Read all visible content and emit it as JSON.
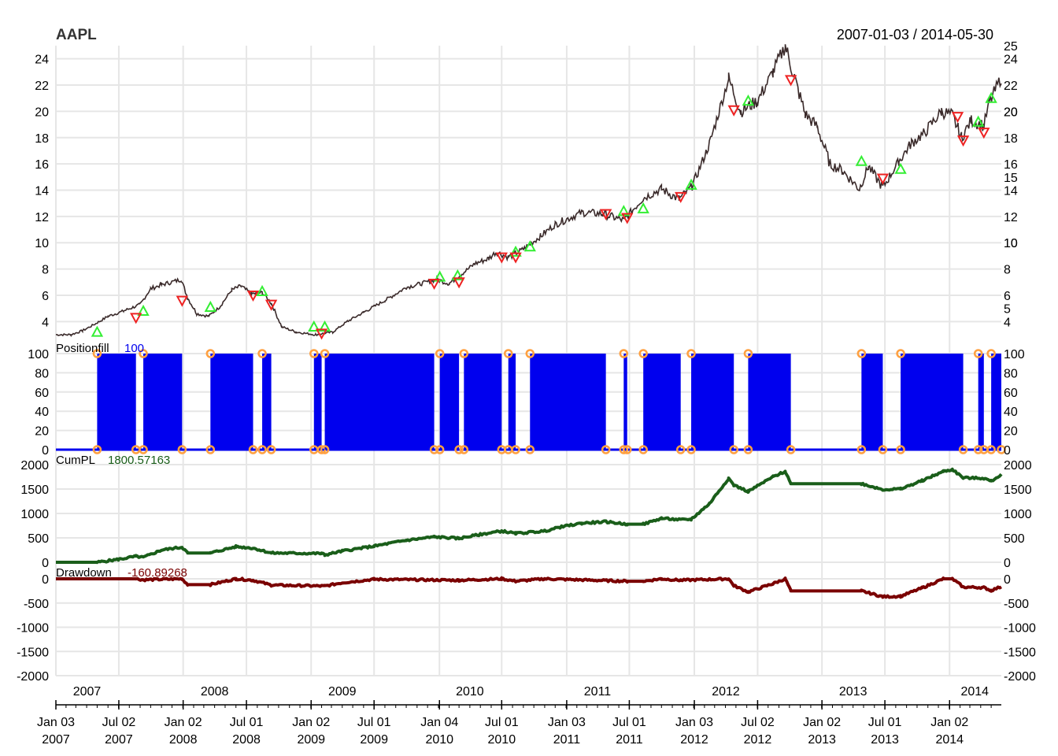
{
  "chart_data": {
    "type": "line",
    "title": "AAPL",
    "date_range": "2007-01-03 / 2014-05-30",
    "x_range": [
      "2007-01-03",
      "2014-05-30"
    ],
    "colors": {
      "price": "#3a2a2a",
      "buy": "#33ee33",
      "sell": "#ee2222",
      "position": "#0000ee",
      "fill_marker": "#ffa040",
      "cumpl": "#1a5e1a",
      "drawdown": "#7a0000",
      "grid": "#e6e6e6"
    },
    "x_ticks_major": [
      {
        "date": "2007-01-03",
        "line1": "Jan 03",
        "line2": "2007"
      },
      {
        "date": "2007-07-02",
        "line1": "Jul 02",
        "line2": "2007"
      },
      {
        "date": "2008-01-02",
        "line1": "Jan 02",
        "line2": "2008"
      },
      {
        "date": "2008-07-01",
        "line1": "Jul 01",
        "line2": "2008"
      },
      {
        "date": "2009-01-02",
        "line1": "Jan 02",
        "line2": "2009"
      },
      {
        "date": "2009-07-01",
        "line1": "Jul 01",
        "line2": "2009"
      },
      {
        "date": "2010-01-04",
        "line1": "Jan 04",
        "line2": "2010"
      },
      {
        "date": "2010-07-01",
        "line1": "Jul 01",
        "line2": "2010"
      },
      {
        "date": "2011-01-03",
        "line1": "Jan 03",
        "line2": "2011"
      },
      {
        "date": "2011-07-01",
        "line1": "Jul 01",
        "line2": "2011"
      },
      {
        "date": "2012-01-03",
        "line1": "Jan 03",
        "line2": "2012"
      },
      {
        "date": "2012-07-02",
        "line1": "Jul 02",
        "line2": "2012"
      },
      {
        "date": "2013-01-02",
        "line1": "Jan 02",
        "line2": "2013"
      },
      {
        "date": "2013-07-01",
        "line1": "Jul 01",
        "line2": "2013"
      },
      {
        "date": "2014-01-02",
        "line1": "Jan 02",
        "line2": "2014"
      }
    ],
    "x_year_labels": [
      {
        "date": "2007-04-02",
        "label": "2007"
      },
      {
        "date": "2008-04-01",
        "label": "2008"
      },
      {
        "date": "2009-04-01",
        "label": "2009"
      },
      {
        "date": "2010-04-01",
        "label": "2010"
      },
      {
        "date": "2011-04-01",
        "label": "2011"
      },
      {
        "date": "2012-04-02",
        "label": "2012"
      },
      {
        "date": "2013-04-01",
        "label": "2013"
      },
      {
        "date": "2014-03-15",
        "label": "2014"
      }
    ],
    "panels": [
      {
        "id": "price",
        "label": "",
        "value_label": "",
        "ylim": [
          3,
          25
        ],
        "y_ticks_left": [
          "4",
          "6",
          "8",
          "10",
          "12",
          "14",
          "16",
          "18",
          "20",
          "22",
          "24"
        ],
        "y_ticks_right": [
          "4",
          "5",
          "6",
          "8",
          "10",
          "10",
          "12",
          "14",
          "15",
          "16",
          "18",
          "20",
          "20",
          "22",
          "24",
          "25"
        ],
        "series_points": [
          [
            "2007-01-03",
            3.0
          ],
          [
            "2007-02-15",
            3.0
          ],
          [
            "2007-03-20",
            3.3
          ],
          [
            "2007-05-01",
            3.9
          ],
          [
            "2007-06-01",
            4.4
          ],
          [
            "2007-07-15",
            4.8
          ],
          [
            "2007-09-01",
            5.3
          ],
          [
            "2007-10-01",
            6.5
          ],
          [
            "2007-11-01",
            6.8
          ],
          [
            "2007-12-27",
            7.2
          ],
          [
            "2008-01-15",
            5.8
          ],
          [
            "2008-02-10",
            4.6
          ],
          [
            "2008-03-15",
            4.4
          ],
          [
            "2008-04-15",
            5.1
          ],
          [
            "2008-05-20",
            6.4
          ],
          [
            "2008-06-15",
            6.7
          ],
          [
            "2008-07-15",
            6.1
          ],
          [
            "2008-08-15",
            6.2
          ],
          [
            "2008-09-10",
            5.4
          ],
          [
            "2008-10-10",
            3.6
          ],
          [
            "2008-11-20",
            3.2
          ],
          [
            "2009-01-15",
            3.0
          ],
          [
            "2009-03-05",
            3.2
          ],
          [
            "2009-04-15",
            4.0
          ],
          [
            "2009-06-01",
            4.7
          ],
          [
            "2009-08-01",
            5.6
          ],
          [
            "2009-10-01",
            6.6
          ],
          [
            "2009-12-28",
            7.2
          ],
          [
            "2010-02-01",
            6.9
          ],
          [
            "2010-04-15",
            8.4
          ],
          [
            "2010-05-25",
            8.8
          ],
          [
            "2010-06-15",
            9.3
          ],
          [
            "2010-07-20",
            8.9
          ],
          [
            "2010-09-01",
            9.5
          ],
          [
            "2010-10-20",
            10.5
          ],
          [
            "2010-12-01",
            11.4
          ],
          [
            "2011-02-15",
            12.3
          ],
          [
            "2011-04-15",
            12.2
          ],
          [
            "2011-06-15",
            11.7
          ],
          [
            "2011-08-10",
            13.4
          ],
          [
            "2011-10-01",
            14.1
          ],
          [
            "2011-11-20",
            13.3
          ],
          [
            "2011-12-28",
            14.3
          ],
          [
            "2012-02-15",
            17.5
          ],
          [
            "2012-04-10",
            22.5
          ],
          [
            "2012-05-15",
            20.0
          ],
          [
            "2012-07-02",
            20.8
          ],
          [
            "2012-08-15",
            23.0
          ],
          [
            "2012-09-19",
            25.0
          ],
          [
            "2012-10-15",
            22.6
          ],
          [
            "2012-11-15",
            19.8
          ],
          [
            "2012-12-20",
            18.8
          ],
          [
            "2013-01-25",
            16.0
          ],
          [
            "2013-03-01",
            15.5
          ],
          [
            "2013-04-19",
            14.1
          ],
          [
            "2013-05-15",
            15.8
          ],
          [
            "2013-06-25",
            14.2
          ],
          [
            "2013-08-10",
            16.2
          ],
          [
            "2013-09-15",
            17.6
          ],
          [
            "2013-10-20",
            18.3
          ],
          [
            "2013-12-10",
            20.0
          ],
          [
            "2014-01-10",
            19.7
          ],
          [
            "2014-02-05",
            18.0
          ],
          [
            "2014-03-05",
            19.3
          ],
          [
            "2014-04-10",
            18.9
          ],
          [
            "2014-04-25",
            20.6
          ],
          [
            "2014-05-30",
            22.6
          ]
        ],
        "buy_signals": [
          [
            "2007-05-01",
            3.2
          ],
          [
            "2007-09-10",
            4.8
          ],
          [
            "2008-03-20",
            5.1
          ],
          [
            "2008-08-15",
            6.3
          ],
          [
            "2009-01-10",
            3.6
          ],
          [
            "2009-02-10",
            3.6
          ],
          [
            "2010-01-05",
            7.4
          ],
          [
            "2010-02-25",
            7.5
          ],
          [
            "2010-08-10",
            9.3
          ],
          [
            "2010-09-20",
            9.7
          ],
          [
            "2011-06-15",
            12.4
          ],
          [
            "2011-08-10",
            12.6
          ],
          [
            "2011-12-25",
            14.4
          ],
          [
            "2012-06-05",
            20.8
          ],
          [
            "2013-04-25",
            16.2
          ],
          [
            "2013-08-15",
            15.6
          ],
          [
            "2014-03-25",
            19.2
          ],
          [
            "2014-05-01",
            21.0
          ]
        ],
        "sell_signals": [
          [
            "2007-08-20",
            4.3
          ],
          [
            "2007-12-30",
            5.6
          ],
          [
            "2008-07-20",
            6.0
          ],
          [
            "2008-09-10",
            5.3
          ],
          [
            "2009-02-01",
            3.1
          ],
          [
            "2009-12-20",
            6.9
          ],
          [
            "2010-03-01",
            7.0
          ],
          [
            "2010-07-01",
            8.9
          ],
          [
            "2010-08-10",
            8.9
          ],
          [
            "2011-04-25",
            12.2
          ],
          [
            "2011-06-25",
            11.9
          ],
          [
            "2011-11-25",
            13.5
          ],
          [
            "2012-04-25",
            20.1
          ],
          [
            "2012-10-05",
            22.4
          ],
          [
            "2013-06-25",
            14.9
          ],
          [
            "2014-01-25",
            19.6
          ],
          [
            "2014-02-10",
            17.8
          ],
          [
            "2014-04-10",
            18.4
          ]
        ]
      },
      {
        "id": "position",
        "label": "Positionfill",
        "value_label": "100",
        "ylim": [
          0,
          100
        ],
        "y_ticks_left": [
          "0",
          "20",
          "40",
          "60",
          "80",
          "100"
        ],
        "y_ticks_right": [
          "0",
          "20",
          "40",
          "60",
          "80",
          "100"
        ],
        "long_intervals": [
          [
            "2007-05-01",
            "2007-08-20"
          ],
          [
            "2007-09-10",
            "2007-12-30"
          ],
          [
            "2008-03-20",
            "2008-07-20"
          ],
          [
            "2008-08-15",
            "2008-09-10"
          ],
          [
            "2009-01-10",
            "2009-02-01"
          ],
          [
            "2009-02-10",
            "2009-12-20"
          ],
          [
            "2010-01-05",
            "2010-03-01"
          ],
          [
            "2010-03-15",
            "2010-07-01"
          ],
          [
            "2010-07-20",
            "2010-08-10"
          ],
          [
            "2010-09-20",
            "2011-04-25"
          ],
          [
            "2011-06-15",
            "2011-06-25"
          ],
          [
            "2011-08-10",
            "2011-11-25"
          ],
          [
            "2011-12-25",
            "2012-04-25"
          ],
          [
            "2012-06-05",
            "2012-10-05"
          ],
          [
            "2013-04-25",
            "2013-06-25"
          ],
          [
            "2013-08-15",
            "2014-02-10"
          ],
          [
            "2014-03-25",
            "2014-04-10"
          ],
          [
            "2014-05-01",
            "2014-05-30"
          ]
        ]
      },
      {
        "id": "cumpl",
        "label": "CumPL",
        "value_label": "1800.57163",
        "ylim": [
          0,
          2000
        ],
        "y_ticks_left": [
          "0",
          "500",
          "1000",
          "1500",
          "2000"
        ],
        "y_ticks_right": [
          "0",
          "500",
          "1000",
          "1500",
          "2000"
        ],
        "series_points": [
          [
            "2007-01-03",
            0
          ],
          [
            "2007-05-01",
            0
          ],
          [
            "2007-07-01",
            60
          ],
          [
            "2007-08-20",
            120
          ],
          [
            "2007-09-10",
            100
          ],
          [
            "2007-11-01",
            250
          ],
          [
            "2007-12-30",
            310
          ],
          [
            "2008-01-15",
            190
          ],
          [
            "2008-03-20",
            190
          ],
          [
            "2008-06-01",
            320
          ],
          [
            "2008-07-20",
            290
          ],
          [
            "2008-09-10",
            190
          ],
          [
            "2009-02-01",
            180
          ],
          [
            "2009-02-10",
            150
          ],
          [
            "2009-04-01",
            230
          ],
          [
            "2009-07-01",
            330
          ],
          [
            "2009-10-01",
            450
          ],
          [
            "2009-12-20",
            520
          ],
          [
            "2010-03-01",
            490
          ],
          [
            "2010-05-01",
            570
          ],
          [
            "2010-07-01",
            640
          ],
          [
            "2010-08-10",
            590
          ],
          [
            "2010-11-01",
            640
          ],
          [
            "2010-12-15",
            720
          ],
          [
            "2011-02-15",
            800
          ],
          [
            "2011-04-25",
            830
          ],
          [
            "2011-06-25",
            780
          ],
          [
            "2011-08-10",
            780
          ],
          [
            "2011-10-01",
            900
          ],
          [
            "2011-11-25",
            870
          ],
          [
            "2011-12-25",
            880
          ],
          [
            "2012-02-15",
            1200
          ],
          [
            "2012-04-10",
            1720
          ],
          [
            "2012-04-25",
            1580
          ],
          [
            "2012-06-05",
            1450
          ],
          [
            "2012-08-15",
            1750
          ],
          [
            "2012-09-19",
            1860
          ],
          [
            "2012-10-05",
            1610
          ],
          [
            "2013-04-25",
            1610
          ],
          [
            "2013-06-25",
            1490
          ],
          [
            "2013-08-15",
            1500
          ],
          [
            "2013-10-15",
            1670
          ],
          [
            "2013-12-15",
            1860
          ],
          [
            "2014-01-10",
            1900
          ],
          [
            "2014-02-10",
            1730
          ],
          [
            "2014-04-10",
            1720
          ],
          [
            "2014-05-01",
            1660
          ],
          [
            "2014-05-30",
            1800
          ]
        ]
      },
      {
        "id": "drawdown",
        "label": "Drawdown",
        "value_label": "-160.89268",
        "ylim": [
          -2000,
          0
        ],
        "y_ticks_left": [
          "-2000",
          "-1500",
          "-1000",
          "-500",
          "0"
        ],
        "y_ticks_right": [
          "-2000",
          "-1500",
          "-1000",
          "-500",
          "0"
        ],
        "series_points": [
          [
            "2007-01-03",
            0
          ],
          [
            "2007-08-20",
            0
          ],
          [
            "2007-09-10",
            -20
          ],
          [
            "2007-12-30",
            0
          ],
          [
            "2008-01-15",
            -120
          ],
          [
            "2008-03-20",
            -120
          ],
          [
            "2008-06-01",
            0
          ],
          [
            "2008-07-20",
            -30
          ],
          [
            "2008-09-10",
            -130
          ],
          [
            "2009-02-10",
            -150
          ],
          [
            "2009-04-01",
            -80
          ],
          [
            "2009-07-01",
            -10
          ],
          [
            "2010-03-01",
            -30
          ],
          [
            "2010-07-01",
            0
          ],
          [
            "2010-08-10",
            -50
          ],
          [
            "2010-11-01",
            0
          ],
          [
            "2011-06-25",
            -50
          ],
          [
            "2011-08-10",
            -50
          ],
          [
            "2011-10-01",
            0
          ],
          [
            "2011-11-25",
            -30
          ],
          [
            "2012-04-10",
            0
          ],
          [
            "2012-04-25",
            -140
          ],
          [
            "2012-06-05",
            -270
          ],
          [
            "2012-08-15",
            -100
          ],
          [
            "2012-09-19",
            0
          ],
          [
            "2012-10-05",
            -250
          ],
          [
            "2013-04-25",
            -250
          ],
          [
            "2013-06-25",
            -370
          ],
          [
            "2013-08-15",
            -360
          ],
          [
            "2013-10-15",
            -190
          ],
          [
            "2013-12-15",
            0
          ],
          [
            "2014-01-10",
            0
          ],
          [
            "2014-02-10",
            -170
          ],
          [
            "2014-04-10",
            -180
          ],
          [
            "2014-05-01",
            -240
          ],
          [
            "2014-05-30",
            -160
          ]
        ]
      }
    ]
  }
}
